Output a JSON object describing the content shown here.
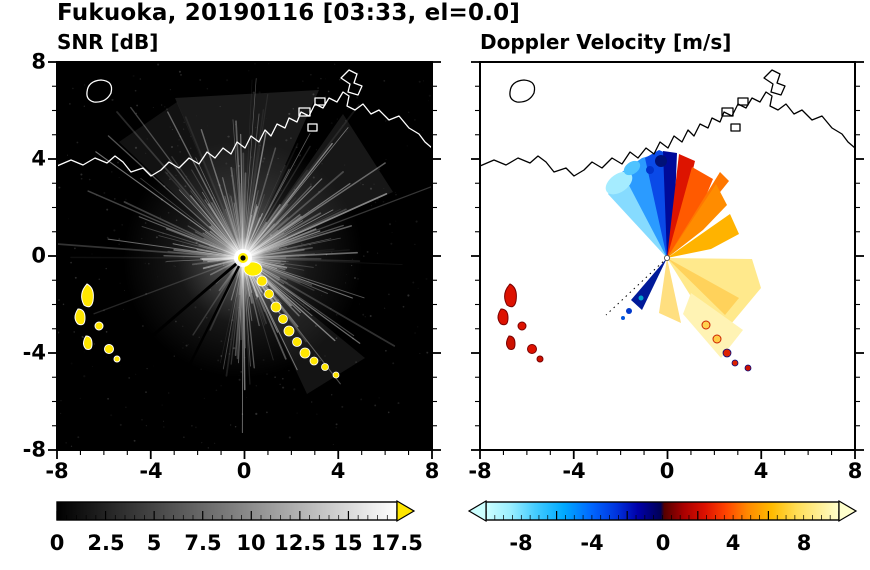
{
  "figure": {
    "title": "Fukuoka, 20190116 [03:33, el=0.0]",
    "station": "Fukuoka",
    "date": "20190116",
    "time": "03:33",
    "elevation": "0.0"
  },
  "panels": [
    {
      "title": "SNR [dB]",
      "x_tick_labels": [
        "-8",
        "-4",
        "0",
        "4",
        "8"
      ],
      "y_tick_labels": [
        "8",
        "4",
        "0",
        "-4",
        "-8"
      ],
      "colorbar_labels": [
        "0",
        "2.5",
        "5",
        "7.5",
        "10",
        "12.5",
        "15",
        "17.5"
      ]
    },
    {
      "title": "Doppler Velocity [m/s]",
      "x_tick_labels": [
        "-8",
        "-4",
        "0",
        "4",
        "8"
      ],
      "colorbar_labels": [
        "-8",
        "-4",
        "0",
        "4",
        "8"
      ]
    }
  ],
  "colors": {
    "snr_background": "#000000",
    "velocity_background": "#ffffff",
    "snr_overflow_arrow": "#ffe600",
    "clutter_yellow": "#ffe600",
    "clutter_red": "#dd1100",
    "velocity_negative_extreme": "#ccffff",
    "velocity_positive_extreme": "#ffffcc",
    "coastline_left": "#ffffff",
    "coastline_right": "#000000"
  },
  "chart_data": [
    {
      "type": "heatmap",
      "title": "SNR [dB]",
      "xlabel": "",
      "ylabel": "",
      "xlim": [
        -8,
        8
      ],
      "ylim": [
        -8,
        8
      ],
      "x_ticks": [
        -8,
        -4,
        0,
        4,
        8
      ],
      "y_ticks": [
        -8,
        -4,
        0,
        4,
        8
      ],
      "minor_tick_step": 1,
      "grid": false,
      "colorbar": {
        "orientation": "horizontal",
        "ticks": [
          0,
          2.5,
          5,
          7.5,
          10,
          12.5,
          15,
          17.5
        ],
        "range": [
          0,
          17.5
        ],
        "colormap": "grayscale black-to-white with yellow overflow arrow"
      },
      "content": "Radar SNR field on black background; radar at origin (0,0) emits bright white radial beams mostly to the north, northeast and east; dark shadow sector toward the southwest; bright yellow high-SNR ground-clutter chain arcs from the radar toward (3.5,-4); yellow clutter patches near (-6.5,-1.5) to (-5.5,-4); white coastline of Fukuoka bay across the upper part, exiting left edge near y=3.7 and right edge near y=4.5"
    },
    {
      "type": "heatmap",
      "title": "Doppler Velocity [m/s]",
      "xlabel": "",
      "ylabel": "",
      "xlim": [
        -8,
        8
      ],
      "ylim": [
        -8,
        8
      ],
      "x_ticks": [
        -8,
        -4,
        0,
        4,
        8
      ],
      "y_ticks": [
        -8,
        -4,
        0,
        4,
        8
      ],
      "minor_tick_step": 1,
      "grid": false,
      "colorbar": {
        "orientation": "horizontal",
        "ticks": [
          -8,
          -4,
          0,
          4,
          8
        ],
        "range": [
          -10,
          10
        ],
        "colormap": "cyan-blue-navy for negative, dark red-red-orange-yellow-pale yellow for positive, arrows at both ends"
      },
      "content": "Doppler velocity fan around radar at (0,0) on white background; negative velocities (cyan/blue/navy, ~-4 to -9 m/s) toward north-northwest; positive velocities (dark red to pale yellow, ~+2 to +9 m/s) toward east and southeast; red clutter echoes near (-6.5,-1.5) to (-5.5,-4); red/navy echoes near (2.5,-3.5) to (3.5,-4.5); black coastline identical to left panel"
    }
  ]
}
